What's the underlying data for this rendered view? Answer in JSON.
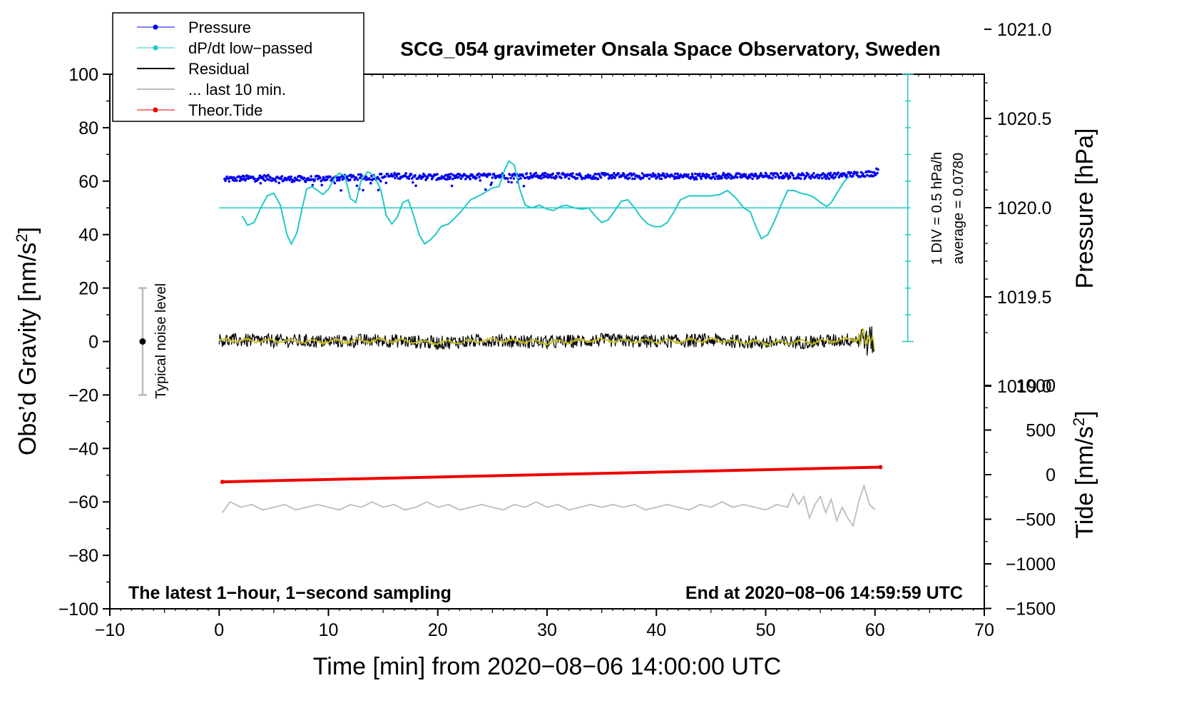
{
  "chart_data": {
    "type": "line",
    "title": "SCG_054 gravimeter Onsala Space Observatory, Sweden",
    "xlabel": "Time [min] from 2020−08−06 14:00:00 UTC",
    "ylabel": "Obs’d Gravity [nm/s",
    "ylabel_sup": "2",
    "ylabel_end": "]",
    "y2label": "Pressure [hPa]",
    "y3label": "Tide [nm/s",
    "y3label_sup": "2",
    "y3label_end": "]",
    "xlim": [
      -10,
      70
    ],
    "ylim": [
      -100,
      100
    ],
    "x_ticks": [
      -10,
      0,
      10,
      20,
      30,
      40,
      50,
      60,
      70
    ],
    "x_tick_labels": [
      "−10",
      "0",
      "10",
      "20",
      "30",
      "40",
      "50",
      "60",
      "70"
    ],
    "y_ticks": [
      -100,
      -80,
      -60,
      -40,
      -20,
      0,
      20,
      40,
      60,
      80,
      100
    ],
    "y_tick_labels": [
      "−100",
      "−80",
      "−60",
      "−40",
      "−20",
      "0",
      "20",
      "40",
      "60",
      "80",
      "100"
    ],
    "pressure_ticks": [
      1019.0,
      1019.5,
      1020.0,
      1020.5,
      1021.0
    ],
    "pressure_tick_labels": [
      "1019.0",
      "1019.5",
      "1020.0",
      "1020.5",
      "1021.0"
    ],
    "tide_ticks": [
      -1500,
      -1000,
      -500,
      0,
      500,
      1000
    ],
    "tide_tick_labels": [
      "−1500",
      "−1000",
      "−500",
      "0",
      "500",
      "1000"
    ],
    "legend": [
      {
        "label": "Pressure",
        "color": "#0000ee",
        "style": "line-dot"
      },
      {
        "label": "dP/dt low−passed",
        "color": "#20c8c8",
        "style": "line-dot"
      },
      {
        "label": "Residual",
        "color": "#000000",
        "style": "line"
      },
      {
        "label": "... last 10 min.",
        "color": "#bbbbbb",
        "style": "line"
      },
      {
        "label": "Theor.Tide",
        "color": "#ee0000",
        "style": "line-dot"
      }
    ],
    "annotations": {
      "noise_label": "Typical noise level",
      "div_label": "1 DIV = 0.5 hPa/h",
      "avg_label": "average = 0.0780",
      "footer_left": "The latest 1−hour, 1−second sampling",
      "footer_right": "End at 2020−08−06 14:59:59 UTC"
    },
    "noise_bar": {
      "x": -7,
      "y": 0,
      "ymin": -20,
      "ymax": 20
    },
    "dpdt_scale": {
      "x": 63,
      "y_bottom": 0,
      "y_top": 100,
      "divisions": 10
    },
    "dpdt_baseline": 50,
    "series": [
      {
        "name": "Pressure",
        "unit_axis": "gravity-equivalent",
        "x": [
          0.5,
          2,
          4,
          6,
          8,
          10,
          12,
          14,
          16,
          18,
          20,
          22,
          24,
          26,
          28,
          30,
          32,
          34,
          36,
          38,
          40,
          42,
          44,
          46,
          48,
          50,
          52,
          54,
          56,
          58,
          60,
          60.3
        ],
        "values": [
          60.5,
          61.0,
          61.3,
          60.8,
          60.8,
          61.0,
          61.3,
          61.5,
          62.0,
          62.0,
          61.5,
          61.7,
          61.8,
          62.0,
          62.0,
          62.0,
          62.0,
          61.8,
          62.0,
          61.8,
          62.0,
          61.8,
          61.8,
          62.0,
          61.8,
          62.0,
          62.0,
          62.0,
          62.0,
          62.5,
          63.0,
          64.5
        ]
      },
      {
        "name": "dP/dt low-passed",
        "x": [
          2.1,
          2.6,
          3.2,
          3.8,
          4.4,
          5.0,
          5.6,
          6.2,
          6.6,
          7.1,
          7.6,
          8.0,
          8.5,
          9.0,
          9.5,
          10.0,
          10.6,
          11.0,
          11.5,
          12.0,
          12.5,
          13.0,
          13.6,
          14.2,
          14.8,
          15.3,
          15.8,
          16.3,
          16.8,
          17.3,
          17.8,
          18.3,
          18.8,
          19.3,
          19.8,
          20.3,
          21.0,
          22.0,
          23.0,
          24.0,
          25.0,
          25.6,
          26.1,
          26.5,
          27.0,
          27.5,
          28.0,
          28.6,
          29.3,
          30.0,
          30.6,
          31.2,
          31.8,
          32.5,
          33.2,
          33.8,
          34.4,
          35.0,
          35.6,
          36.2,
          36.8,
          37.4,
          38.0,
          38.6,
          39.2,
          39.8,
          40.4,
          41.0,
          41.6,
          42.2,
          43.0,
          44.0,
          45.0,
          45.8,
          46.5,
          47.2,
          48.0,
          48.6,
          49.1,
          49.6,
          50.2,
          50.8,
          51.4,
          52.0,
          52.6,
          53.2,
          53.8,
          54.4,
          55.0,
          55.6,
          56.0,
          56.6,
          57.2,
          57.6
        ],
        "values": [
          47.0,
          43.5,
          44.5,
          50.0,
          54.5,
          55.5,
          51.0,
          40.0,
          36.5,
          40.5,
          50.0,
          57.0,
          58.0,
          56.5,
          55.0,
          57.0,
          61.5,
          63.0,
          62.0,
          53.5,
          52.0,
          60.5,
          63.5,
          62.0,
          56.5,
          47.0,
          44.0,
          46.5,
          52.0,
          53.0,
          47.0,
          40.0,
          36.5,
          38.0,
          40.0,
          43.0,
          44.0,
          48.0,
          53.0,
          55.0,
          57.5,
          58.0,
          64.0,
          67.5,
          66.0,
          57.0,
          51.0,
          50.0,
          51.0,
          49.5,
          49.0,
          50.5,
          51.0,
          50.0,
          49.5,
          50.0,
          47.0,
          44.5,
          45.5,
          49.0,
          52.5,
          53.0,
          50.0,
          46.5,
          44.0,
          43.0,
          43.0,
          44.5,
          48.5,
          53.0,
          54.5,
          54.5,
          54.5,
          55.0,
          56.5,
          54.0,
          50.0,
          48.5,
          43.0,
          38.5,
          40.0,
          45.0,
          51.0,
          56.5,
          56.5,
          55.5,
          55.0,
          54.0,
          52.0,
          50.5,
          52.0,
          56.0,
          60.0,
          61.5
        ]
      },
      {
        "name": "Residual",
        "x": [
          0,
          5,
          10,
          15,
          20,
          25,
          30,
          35,
          40,
          45,
          50,
          55,
          58.6,
          59.0,
          59.3,
          59.6,
          60.0
        ],
        "values": [
          0.5,
          0.3,
          0.0,
          0.5,
          -0.5,
          0.5,
          -0.3,
          0.5,
          0.0,
          0.5,
          -0.5,
          0.0,
          1.0,
          2.5,
          -1.5,
          2.0,
          -3.0
        ]
      },
      {
        "name": "... last 10 min.",
        "x": [
          0.3,
          1,
          2,
          3,
          4,
          5,
          6,
          7,
          8,
          9,
          10,
          11,
          12,
          13,
          14,
          15,
          16,
          17,
          18,
          19,
          20,
          21,
          22,
          23,
          24,
          25,
          26,
          27,
          28,
          29,
          30,
          31,
          32,
          33,
          34,
          35,
          36,
          37,
          38,
          39,
          40,
          41,
          42,
          43,
          44,
          45,
          46,
          47,
          48,
          49,
          50,
          51,
          52,
          52.5,
          53,
          53.5,
          54,
          54.5,
          55,
          55.5,
          56,
          56.5,
          57,
          57.5,
          58,
          58.5,
          59,
          59.5,
          60
        ],
        "values": [
          -64,
          -60,
          -62,
          -61,
          -63,
          -62,
          -61,
          -63,
          -62,
          -61,
          -62,
          -63,
          -61,
          -62,
          -60,
          -62,
          -61,
          -63,
          -62,
          -60,
          -62,
          -61,
          -63,
          -62,
          -61,
          -62,
          -63,
          -61,
          -62,
          -60,
          -62,
          -61,
          -63,
          -62,
          -61,
          -62,
          -61,
          -62,
          -61,
          -63,
          -62,
          -61,
          -62,
          -63,
          -61,
          -62,
          -60,
          -62,
          -61,
          -62,
          -63,
          -61,
          -62,
          -57,
          -61,
          -58,
          -66,
          -61,
          -58,
          -64,
          -59,
          -67,
          -62,
          -66,
          -69,
          -60,
          -54,
          -61,
          -63
        ]
      },
      {
        "name": "Theor.Tide",
        "x": [
          0.3,
          60.5
        ],
        "values": [
          -52.5,
          -47.0
        ]
      }
    ]
  }
}
